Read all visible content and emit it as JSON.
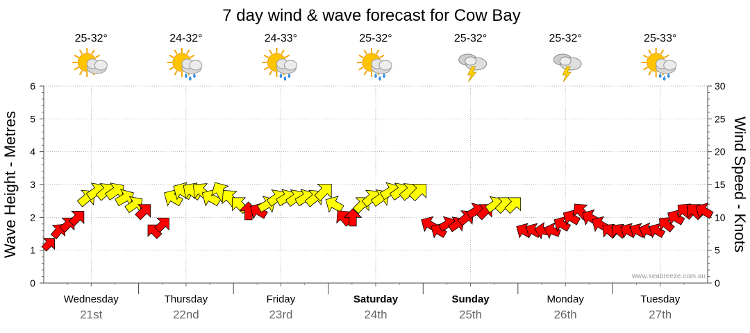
{
  "chart_data": {
    "type": "line",
    "title": "7 day wind & wave forecast for Cow Bay",
    "ylabel_left": "Wave Height - Metres",
    "ylabel_right": "Wind Speed - Knots",
    "ylim_left": [
      0,
      6
    ],
    "ylim_right": [
      0,
      30
    ],
    "left_ticks": [
      "0",
      "1",
      "2",
      "3",
      "4",
      "5",
      "6"
    ],
    "right_ticks": [
      "0",
      "5",
      "10",
      "15",
      "20",
      "25",
      "30"
    ],
    "grid": true,
    "watermark": "www.seabreeze.com.au",
    "days": [
      {
        "name": "Wednesday",
        "date": "21st",
        "temp": "25-32°",
        "icon": "sun-cloud-icon",
        "bold": false
      },
      {
        "name": "Thursday",
        "date": "22nd",
        "temp": "24-32°",
        "icon": "sun-cloud-rain-icon",
        "bold": false
      },
      {
        "name": "Friday",
        "date": "23rd",
        "temp": "24-33°",
        "icon": "sun-cloud-rain-icon",
        "bold": false
      },
      {
        "name": "Saturday",
        "date": "24th",
        "temp": "25-32°",
        "icon": "sun-cloud-rain-icon",
        "bold": true
      },
      {
        "name": "Sunday",
        "date": "25th",
        "temp": "25-32°",
        "icon": "cloud-lightning-icon",
        "bold": true
      },
      {
        "name": "Monday",
        "date": "26th",
        "temp": "25-32°",
        "icon": "cloud-lightning-icon",
        "bold": false
      },
      {
        "name": "Tuesday",
        "date": "27th",
        "temp": "25-33°",
        "icon": "sun-cloud-rain-icon",
        "bold": false
      }
    ],
    "legend_colors": {
      "strong": "#ff0000",
      "moderate": "#ffff00",
      "outline": "#000000"
    },
    "series": [
      {
        "name": "Wind",
        "t": [
          0,
          0.1,
          0.2,
          0.3,
          0.4,
          0.5,
          0.6,
          0.7,
          0.8,
          0.9,
          1.0,
          1.1,
          1.2,
          1.3,
          1.4,
          1.5,
          1.6,
          1.7,
          1.8,
          1.9,
          2.0,
          2.1,
          2.2,
          2.3,
          2.4,
          2.5,
          2.6,
          2.7,
          2.8,
          2.9,
          3.0,
          3.1,
          3.2,
          3.3,
          3.4,
          3.5,
          3.6,
          3.7,
          3.8,
          3.9,
          4.0,
          4.1,
          4.2,
          4.3,
          4.4,
          4.5,
          4.6,
          4.7,
          4.8,
          4.9,
          5.0,
          5.1,
          5.2,
          5.3,
          5.4,
          5.5,
          5.6,
          5.7,
          5.8,
          5.9,
          6.0,
          6.1,
          6.2,
          6.3,
          6.4,
          6.5,
          6.6,
          6.7,
          6.8,
          6.9
        ],
        "values": [
          6,
          8,
          9,
          10,
          13,
          14,
          14,
          14,
          13,
          12,
          11,
          8,
          9,
          13,
          14,
          14,
          14,
          13,
          14,
          13,
          12,
          11,
          11,
          12,
          13,
          13,
          13,
          13,
          13,
          14,
          12,
          10,
          10,
          12,
          13,
          13,
          14,
          14,
          14,
          14,
          9,
          8,
          9,
          9,
          10,
          11,
          11,
          12,
          12,
          12,
          8,
          8,
          8,
          8,
          9,
          10,
          11,
          10,
          9,
          8,
          8,
          8,
          8,
          8,
          8,
          9,
          10,
          11,
          11,
          11
        ],
        "directions": [
          45,
          40,
          45,
          45,
          50,
          55,
          50,
          55,
          60,
          55,
          45,
          315,
          45,
          300,
          300,
          305,
          310,
          300,
          330,
          320,
          315,
          0,
          300,
          60,
          55,
          60,
          55,
          60,
          50,
          45,
          300,
          320,
          0,
          45,
          50,
          55,
          60,
          55,
          50,
          45,
          300,
          300,
          60,
          55,
          50,
          60,
          45,
          55,
          45,
          45,
          300,
          300,
          280,
          290,
          300,
          300,
          320,
          300,
          300,
          310,
          310,
          300,
          300,
          290,
          300,
          310,
          300,
          310,
          315,
          300
        ]
      }
    ]
  }
}
